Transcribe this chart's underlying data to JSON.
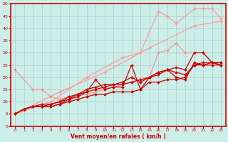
{
  "xlabel": "Vent moyen/en rafales ( km/h )",
  "bg_color": "#cceee8",
  "grid_color": "#aacccc",
  "axis_color": "#cc0000",
  "spine_color": "#cc0000",
  "xlim": [
    -0.5,
    23.5
  ],
  "ylim": [
    0,
    50
  ],
  "xticks": [
    0,
    1,
    2,
    3,
    4,
    5,
    6,
    7,
    8,
    9,
    10,
    11,
    12,
    13,
    14,
    15,
    16,
    17,
    18,
    19,
    20,
    21,
    22,
    23
  ],
  "yticks": [
    0,
    5,
    10,
    15,
    20,
    25,
    30,
    35,
    40,
    45,
    50
  ],
  "series": [
    {
      "x": [
        0,
        5,
        10,
        15,
        20,
        23
      ],
      "y": [
        5,
        14,
        22,
        32,
        41,
        43
      ],
      "color": "#ff9999",
      "alpha": 1.0,
      "lw": 0.9,
      "marker": "D",
      "ms": 2.0
    },
    {
      "x": [
        0,
        4,
        8,
        12,
        14,
        16,
        17,
        18,
        20,
        21,
        22,
        23
      ],
      "y": [
        5,
        10,
        20,
        28,
        30,
        47,
        45,
        42,
        48,
        48,
        48,
        44
      ],
      "color": "#ff9999",
      "alpha": 1.0,
      "lw": 0.9,
      "marker": "D",
      "ms": 2.0
    },
    {
      "x": [
        0,
        2,
        3,
        4,
        5,
        6,
        7,
        8,
        9,
        10,
        11,
        12,
        13,
        14,
        15,
        16,
        17,
        18,
        19,
        20,
        21,
        22,
        23
      ],
      "y": [
        23,
        15,
        15,
        12,
        11,
        12,
        13,
        13,
        14,
        15,
        16,
        17,
        18,
        19,
        20,
        30,
        31,
        34,
        30,
        30,
        30,
        26,
        25
      ],
      "color": "#ff8888",
      "alpha": 0.85,
      "lw": 0.9,
      "marker": "D",
      "ms": 2.0
    },
    {
      "x": [
        0,
        1,
        2,
        3,
        4,
        5,
        6,
        7,
        8,
        9,
        10,
        11,
        12,
        13,
        14,
        15,
        16,
        17,
        18,
        19,
        20,
        21,
        22,
        23
      ],
      "y": [
        5,
        7,
        8,
        8,
        8,
        9,
        10,
        11,
        12,
        13,
        13,
        14,
        14,
        14,
        15,
        18,
        18,
        19,
        19,
        20,
        25,
        25,
        26,
        26
      ],
      "color": "#cc0000",
      "alpha": 1.0,
      "lw": 0.9,
      "marker": "D",
      "ms": 2.0
    },
    {
      "x": [
        0,
        1,
        2,
        3,
        4,
        5,
        6,
        7,
        8,
        9,
        10,
        11,
        12,
        13,
        14,
        15,
        16,
        17,
        18,
        19,
        20,
        21,
        22,
        23
      ],
      "y": [
        5,
        7,
        8,
        8,
        8,
        9,
        11,
        13,
        14,
        19,
        15,
        16,
        16,
        25,
        15,
        20,
        21,
        23,
        24,
        23,
        30,
        30,
        26,
        26
      ],
      "color": "#cc0000",
      "alpha": 1.0,
      "lw": 0.9,
      "marker": "D",
      "ms": 2.0
    },
    {
      "x": [
        0,
        1,
        2,
        3,
        4,
        5,
        6,
        7,
        8,
        9,
        10,
        11,
        12,
        13,
        14,
        15,
        16,
        17,
        18,
        19,
        20,
        21,
        22,
        23
      ],
      "y": [
        5,
        7,
        8,
        9,
        9,
        10,
        12,
        13,
        15,
        16,
        17,
        17,
        18,
        20,
        18,
        20,
        22,
        23,
        20,
        19,
        26,
        25,
        25,
        25
      ],
      "color": "#cc0000",
      "alpha": 1.0,
      "lw": 0.9,
      "marker": "D",
      "ms": 2.0
    },
    {
      "x": [
        0,
        1,
        2,
        3,
        4,
        5,
        6,
        7,
        8,
        9,
        10,
        11,
        12,
        13,
        14,
        15,
        16,
        17,
        18,
        19,
        20,
        21,
        22,
        23
      ],
      "y": [
        5,
        7,
        8,
        8,
        9,
        10,
        11,
        12,
        14,
        15,
        16,
        17,
        17,
        18,
        19,
        20,
        22,
        23,
        22,
        21,
        25,
        26,
        26,
        25
      ],
      "color": "#cc0000",
      "alpha": 1.0,
      "lw": 0.9,
      "marker": "D",
      "ms": 2.0
    }
  ]
}
